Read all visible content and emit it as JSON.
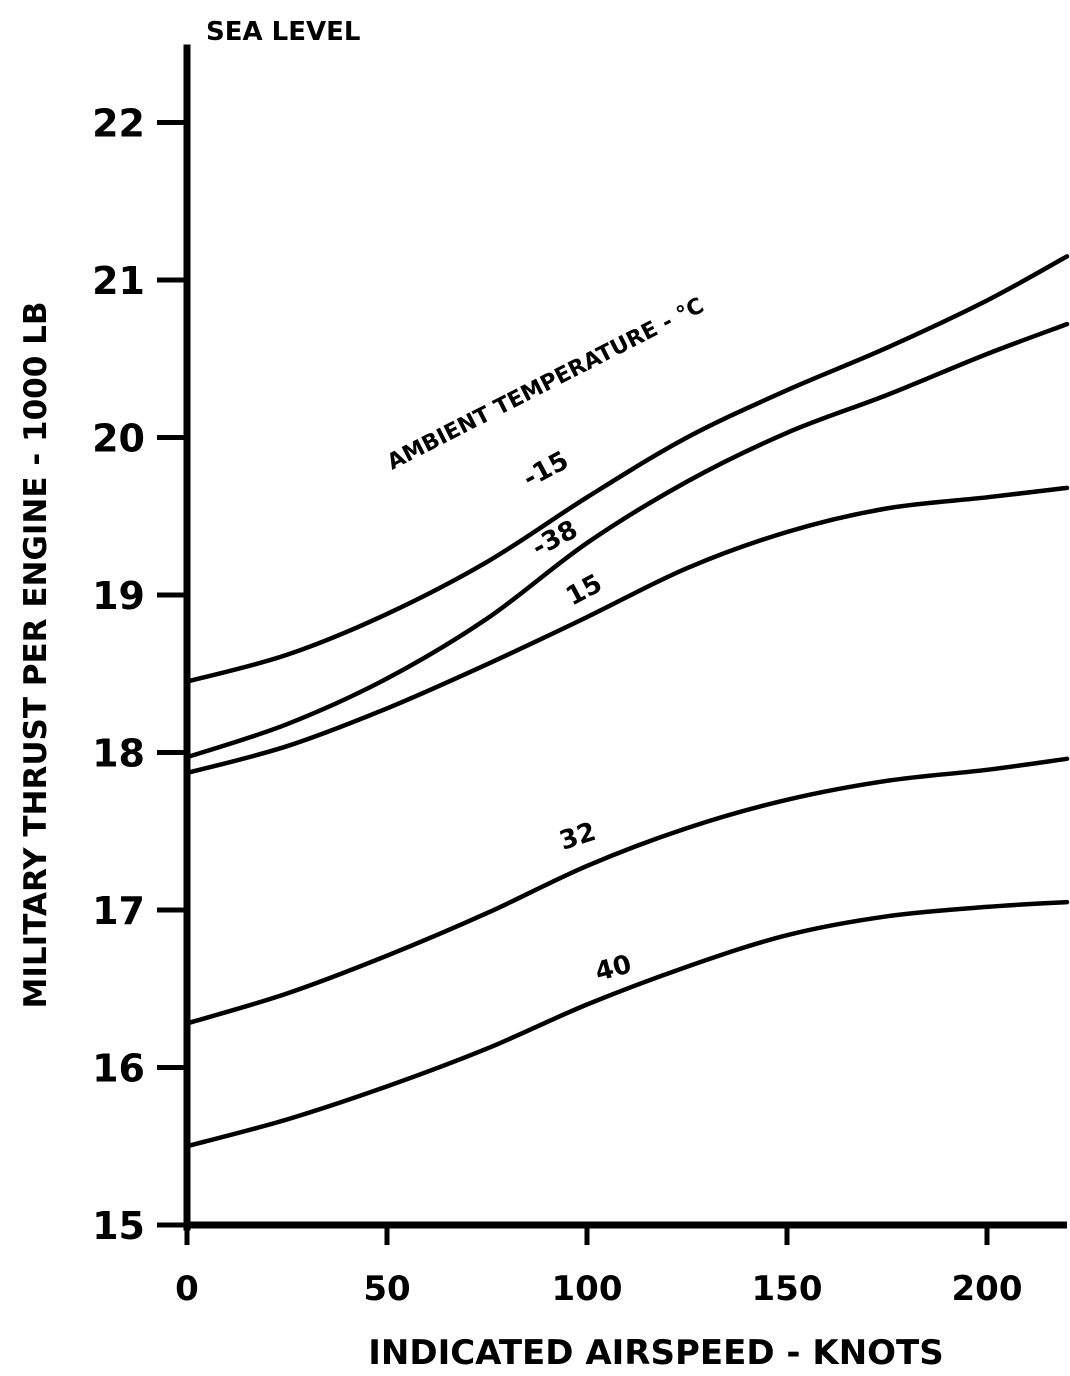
{
  "chart_data": {
    "type": "line",
    "title": "SEA LEVEL",
    "xlabel": "INDICATED AIRSPEED - KNOTS",
    "ylabel": "MILITARY THRUST PER ENGINE - 1000 LB",
    "xlim": [
      0,
      220
    ],
    "ylim": [
      15,
      22.5
    ],
    "xticks": [
      0,
      50,
      100,
      150,
      200
    ],
    "yticks": [
      15,
      16,
      17,
      18,
      19,
      20,
      21,
      22
    ],
    "grid": false,
    "legend_title": "AMBIENT TEMPERATURE - °C",
    "series": [
      {
        "name": "-15",
        "x": [
          0,
          25,
          50,
          75,
          100,
          125,
          150,
          175,
          200,
          220
        ],
        "y": [
          18.45,
          18.62,
          18.88,
          19.21,
          19.62,
          20.0,
          20.3,
          20.57,
          20.87,
          21.15
        ]
      },
      {
        "name": "-38",
        "x": [
          0,
          25,
          50,
          75,
          100,
          125,
          150,
          175,
          200,
          220
        ],
        "y": [
          17.97,
          18.18,
          18.47,
          18.85,
          19.33,
          19.72,
          20.03,
          20.27,
          20.53,
          20.72
        ]
      },
      {
        "name": "15",
        "x": [
          0,
          25,
          50,
          75,
          100,
          125,
          150,
          175,
          200,
          220
        ],
        "y": [
          17.87,
          18.04,
          18.28,
          18.56,
          18.86,
          19.17,
          19.4,
          19.55,
          19.62,
          19.68
        ]
      },
      {
        "name": "32",
        "x": [
          0,
          25,
          50,
          75,
          100,
          125,
          150,
          175,
          200,
          220
        ],
        "y": [
          16.28,
          16.47,
          16.71,
          16.98,
          17.28,
          17.52,
          17.7,
          17.82,
          17.89,
          17.96
        ]
      },
      {
        "name": "40",
        "x": [
          0,
          25,
          50,
          75,
          100,
          125,
          150,
          175,
          200,
          220
        ],
        "y": [
          15.5,
          15.67,
          15.88,
          16.12,
          16.4,
          16.64,
          16.84,
          16.96,
          17.02,
          17.05
        ]
      }
    ]
  }
}
